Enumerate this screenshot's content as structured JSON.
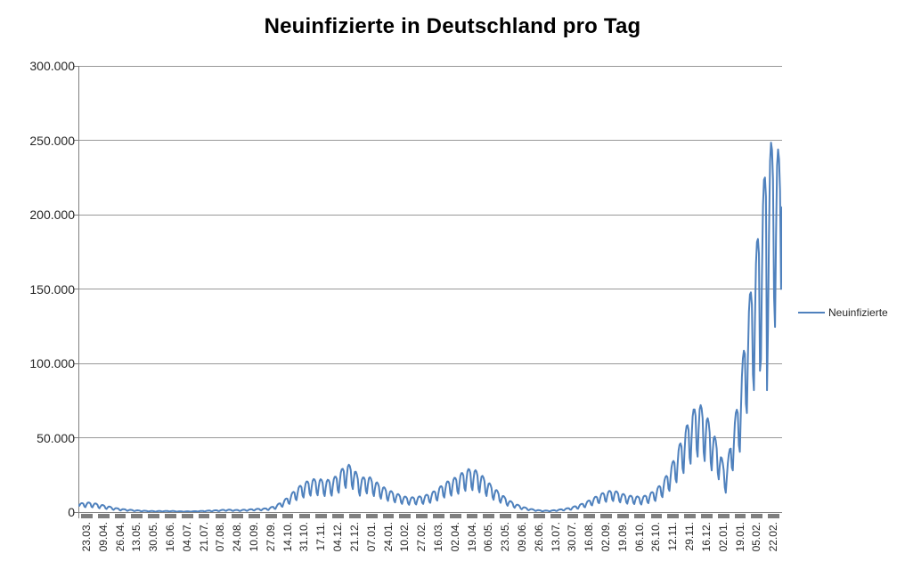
{
  "chart": {
    "title": "Neuinfizierte in Deutschland pro Tag"
  },
  "legend": {
    "label": "Neuinfizierte"
  },
  "colors": {
    "series_line": "#4F81BD",
    "gridline": "#989898",
    "axis_line": "#808080",
    "tick_dash": "#7F7F7F",
    "label_text": "#262626",
    "background": "#FFFFFF"
  },
  "chart_data": {
    "type": "line",
    "title": "Neuinfizierte in Deutschland pro Tag",
    "xlabel": "",
    "ylabel": "",
    "grid": true,
    "legend_position": "right",
    "y_axis": {
      "min": 0,
      "max": 300000,
      "ticks": [
        {
          "label": "300.000",
          "value": 300000
        },
        {
          "label": "250.000",
          "value": 250000
        },
        {
          "label": "200.000",
          "value": 200000
        },
        {
          "label": "150.000",
          "value": 150000
        },
        {
          "label": "100.000",
          "value": 100000
        },
        {
          "label": "50.000",
          "value": 50000
        },
        {
          "label": "0",
          "value": 0
        }
      ]
    },
    "x_axis": {
      "tick_labels": [
        "23.03.",
        "09.04.",
        "26.04.",
        "13.05.",
        "30.05.",
        "16.06.",
        "04.07.",
        "21.07.",
        "07.08.",
        "24.08.",
        "10.09.",
        "27.09.",
        "14.10.",
        "31.10.",
        "17.11.",
        "04.12.",
        "21.12.",
        "07.01.",
        "24.01.",
        "10.02.",
        "27.02.",
        "16.03.",
        "02.04.",
        "19.04.",
        "06.05.",
        "23.05.",
        "09.06.",
        "26.06.",
        "13.07.",
        "30.07.",
        "16.08.",
        "02.09.",
        "19.09.",
        "06.10.",
        "26.10.",
        "12.11.",
        "29.11.",
        "16.12.",
        "02.01.",
        "19.01.",
        "05.02.",
        "22.02."
      ],
      "tick_day_indices": [
        0,
        17,
        34,
        51,
        68,
        85,
        102,
        119,
        136,
        153,
        170,
        187,
        204,
        221,
        238,
        255,
        272,
        289,
        306,
        323,
        340,
        357,
        374,
        391,
        408,
        425,
        442,
        459,
        476,
        493,
        510,
        527,
        544,
        561,
        581,
        598,
        615,
        632,
        649,
        666,
        683,
        700
      ]
    },
    "series": [
      {
        "name": "Neuinfizierte",
        "sampling": "daily",
        "n_points": 701,
        "start_label": "23.03.",
        "end_label": "22.02.",
        "weekly_peak_anchors": [
          5500,
          6600,
          6300,
          5200,
          4200,
          3000,
          2200,
          1700,
          1300,
          1000,
          800,
          650,
          750,
          850,
          600,
          500,
          550,
          700,
          900,
          1100,
          1300,
          1700,
          1500,
          1400,
          1700,
          2100,
          2300,
          2700,
          4300,
          7200,
          11000,
          16000,
          19500,
          22000,
          22500,
          21500,
          22000,
          26000,
          32500,
          31000,
          22000,
          25000,
          21500,
          18000,
          15000,
          13000,
          11000,
          9800,
          10200,
          11000,
          12500,
          15500,
          19500,
          22000,
          24500,
          28500,
          29500,
          26500,
          21500,
          16500,
          12500,
          8500,
          5800,
          3800,
          2400,
          1500,
          1000,
          1000,
          1500,
          2200,
          3100,
          4600,
          6500,
          9000,
          11800,
          13800,
          14800,
          13000,
          11200,
          10800,
          10200,
          12000,
          15000,
          20000,
          28500,
          40000,
          52500,
          65000,
          74500,
          68500,
          56000,
          44000,
          26000,
          56000,
          81000,
          133000,
          164000,
          205000,
          248000,
          249000,
          237000
        ],
        "weekday_factors": [
          0.5,
          0.75,
          0.95,
          1.0,
          0.98,
          0.9,
          0.58
        ],
        "value_overrides": {
          "0": 4800,
          "678": 95000,
          "685": 82000,
          "699": 150000,
          "700": 205000
        }
      }
    ]
  }
}
